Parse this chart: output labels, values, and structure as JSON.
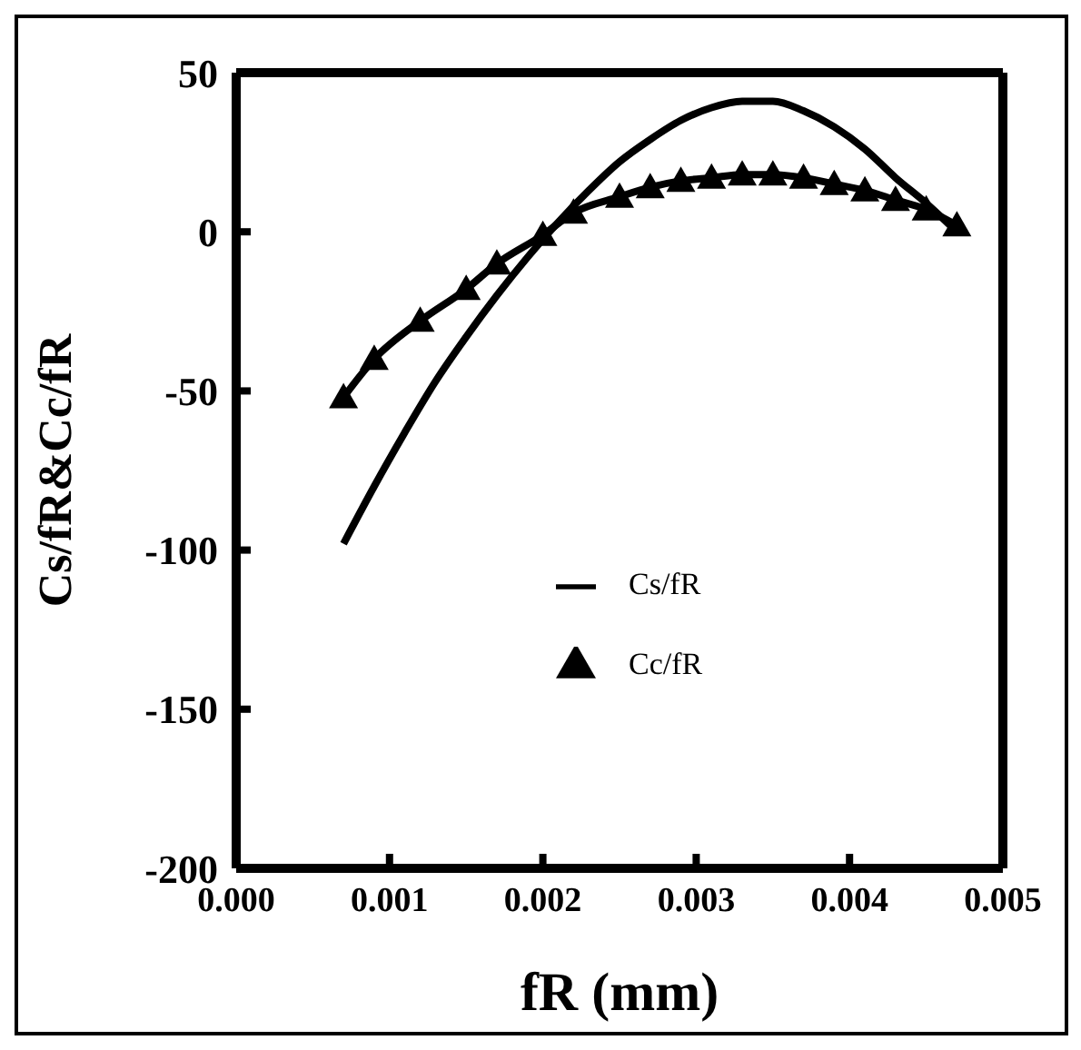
{
  "chart_data": {
    "type": "line",
    "xlabel": "fR (mm)",
    "ylabel": "Cs/fR&Cc/fR",
    "xlim": [
      0,
      0.005
    ],
    "xticks": [
      {
        "value": 0,
        "label": "0.000"
      },
      {
        "value": 0.001,
        "label": "0.001"
      },
      {
        "value": 0.002,
        "label": "0.002"
      },
      {
        "value": 0.003,
        "label": "0.003"
      },
      {
        "value": 0.004,
        "label": "0.004"
      },
      {
        "value": 0.005,
        "label": "0.005"
      }
    ],
    "ylim": [
      -200,
      50
    ],
    "yticks": [
      -200,
      -150,
      -100,
      -50,
      0,
      50
    ],
    "grid": false,
    "legend": "bottom right",
    "series": [
      {
        "name": "Cs/fR",
        "color": "#000000",
        "marker": "none",
        "x": [
          0.0007,
          0.0009,
          0.0011,
          0.0013,
          0.0015,
          0.0017,
          0.0019,
          0.0021,
          0.0023,
          0.0025,
          0.0027,
          0.0029,
          0.0031,
          0.0033,
          0.0035,
          0.0037,
          0.0039,
          0.0041,
          0.0043,
          0.0045,
          0.0047
        ],
        "values": [
          -98,
          -80,
          -63,
          -47,
          -33,
          -20,
          -8,
          3,
          13,
          22,
          29,
          35,
          39,
          41,
          41,
          38,
          33,
          26,
          17,
          9,
          0
        ]
      },
      {
        "name": "Cc/fR",
        "color": "#000000",
        "marker": "triangle",
        "x": [
          0.0007,
          0.0009,
          0.0012,
          0.0015,
          0.0017,
          0.002,
          0.0022,
          0.0025,
          0.0027,
          0.0029,
          0.0031,
          0.0033,
          0.0035,
          0.0037,
          0.0039,
          0.0041,
          0.0043,
          0.0045,
          0.0047
        ],
        "values": [
          -52,
          -40,
          -28,
          -18,
          -10,
          -1,
          6,
          11,
          14,
          16,
          17,
          18,
          18,
          17,
          15,
          13,
          10,
          7,
          2
        ]
      }
    ]
  }
}
